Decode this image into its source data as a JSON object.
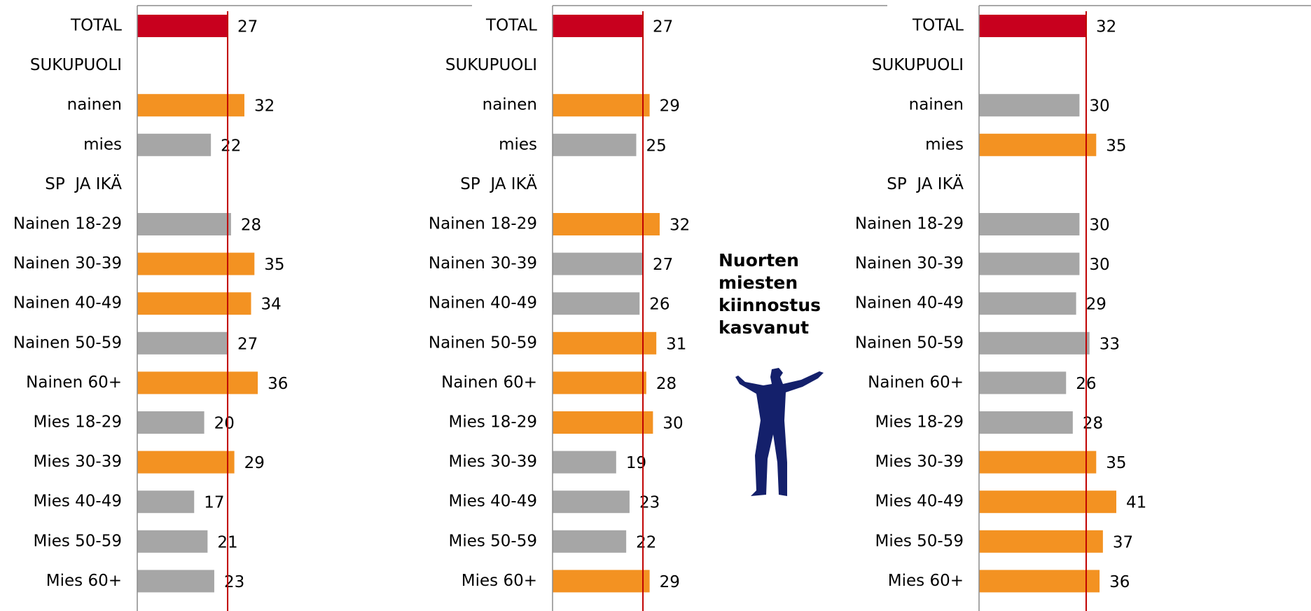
{
  "chart_data": [
    {
      "type": "bar",
      "orientation": "horizontal",
      "categories": [
        "TOTAL",
        "SUKUPUOLI",
        "nainen",
        "mies",
        "SP  JA IKÄ",
        "Nainen 18-29",
        "Nainen 30-39",
        "Nainen 40-49",
        "Nainen 50-59",
        "Nainen 60+",
        "Mies 18-29",
        "Mies 30-39",
        "Mies 40-49",
        "Mies 50-59",
        "Mies 60+"
      ],
      "values": [
        27,
        null,
        32,
        22,
        null,
        28,
        35,
        34,
        27,
        36,
        20,
        29,
        17,
        21,
        23
      ],
      "colors": [
        "#c8001e",
        null,
        "#f39222",
        "#a6a6a6",
        null,
        "#a6a6a6",
        "#f39222",
        "#f39222",
        "#a6a6a6",
        "#f39222",
        "#a6a6a6",
        "#f39222",
        "#a6a6a6",
        "#a6a6a6",
        "#a6a6a6"
      ],
      "reference_line_color": "#c00000",
      "xlim": [
        0,
        100
      ]
    },
    {
      "type": "bar",
      "orientation": "horizontal",
      "categories": [
        "TOTAL",
        "SUKUPUOLI",
        "nainen",
        "mies",
        "SP  JA IKÄ",
        "Nainen 18-29",
        "Nainen 30-39",
        "Nainen 40-49",
        "Nainen 50-59",
        "Nainen 60+",
        "Mies 18-29",
        "Mies 30-39",
        "Mies 40-49",
        "Mies 50-59",
        "Mies 60+"
      ],
      "values": [
        27,
        null,
        29,
        25,
        null,
        32,
        27,
        26,
        31,
        28,
        30,
        19,
        23,
        22,
        29
      ],
      "colors": [
        "#c8001e",
        null,
        "#f39222",
        "#a6a6a6",
        null,
        "#f39222",
        "#a6a6a6",
        "#a6a6a6",
        "#f39222",
        "#f39222",
        "#f39222",
        "#a6a6a6",
        "#a6a6a6",
        "#a6a6a6",
        "#f39222"
      ],
      "reference_line_color": "#c00000",
      "xlim": [
        0,
        100
      ],
      "annotation": "Nuorten miesten kiinnostus kasvanut"
    },
    {
      "type": "bar",
      "orientation": "horizontal",
      "categories": [
        "TOTAL",
        "SUKUPUOLI",
        "nainen",
        "mies",
        "SP  JA IKÄ",
        "Nainen 18-29",
        "Nainen 30-39",
        "Nainen 40-49",
        "Nainen 50-59",
        "Nainen 60+",
        "Mies 18-29",
        "Mies 30-39",
        "Mies 40-49",
        "Mies 50-59",
        "Mies 60+"
      ],
      "values": [
        32,
        null,
        30,
        35,
        null,
        30,
        30,
        29,
        33,
        26,
        28,
        35,
        41,
        37,
        36
      ],
      "colors": [
        "#c8001e",
        null,
        "#a6a6a6",
        "#f39222",
        null,
        "#a6a6a6",
        "#a6a6a6",
        "#a6a6a6",
        "#a6a6a6",
        "#a6a6a6",
        "#a6a6a6",
        "#f39222",
        "#f39222",
        "#f39222",
        "#f39222"
      ],
      "reference_line_color": "#c00000",
      "xlim": [
        0,
        100
      ]
    }
  ]
}
